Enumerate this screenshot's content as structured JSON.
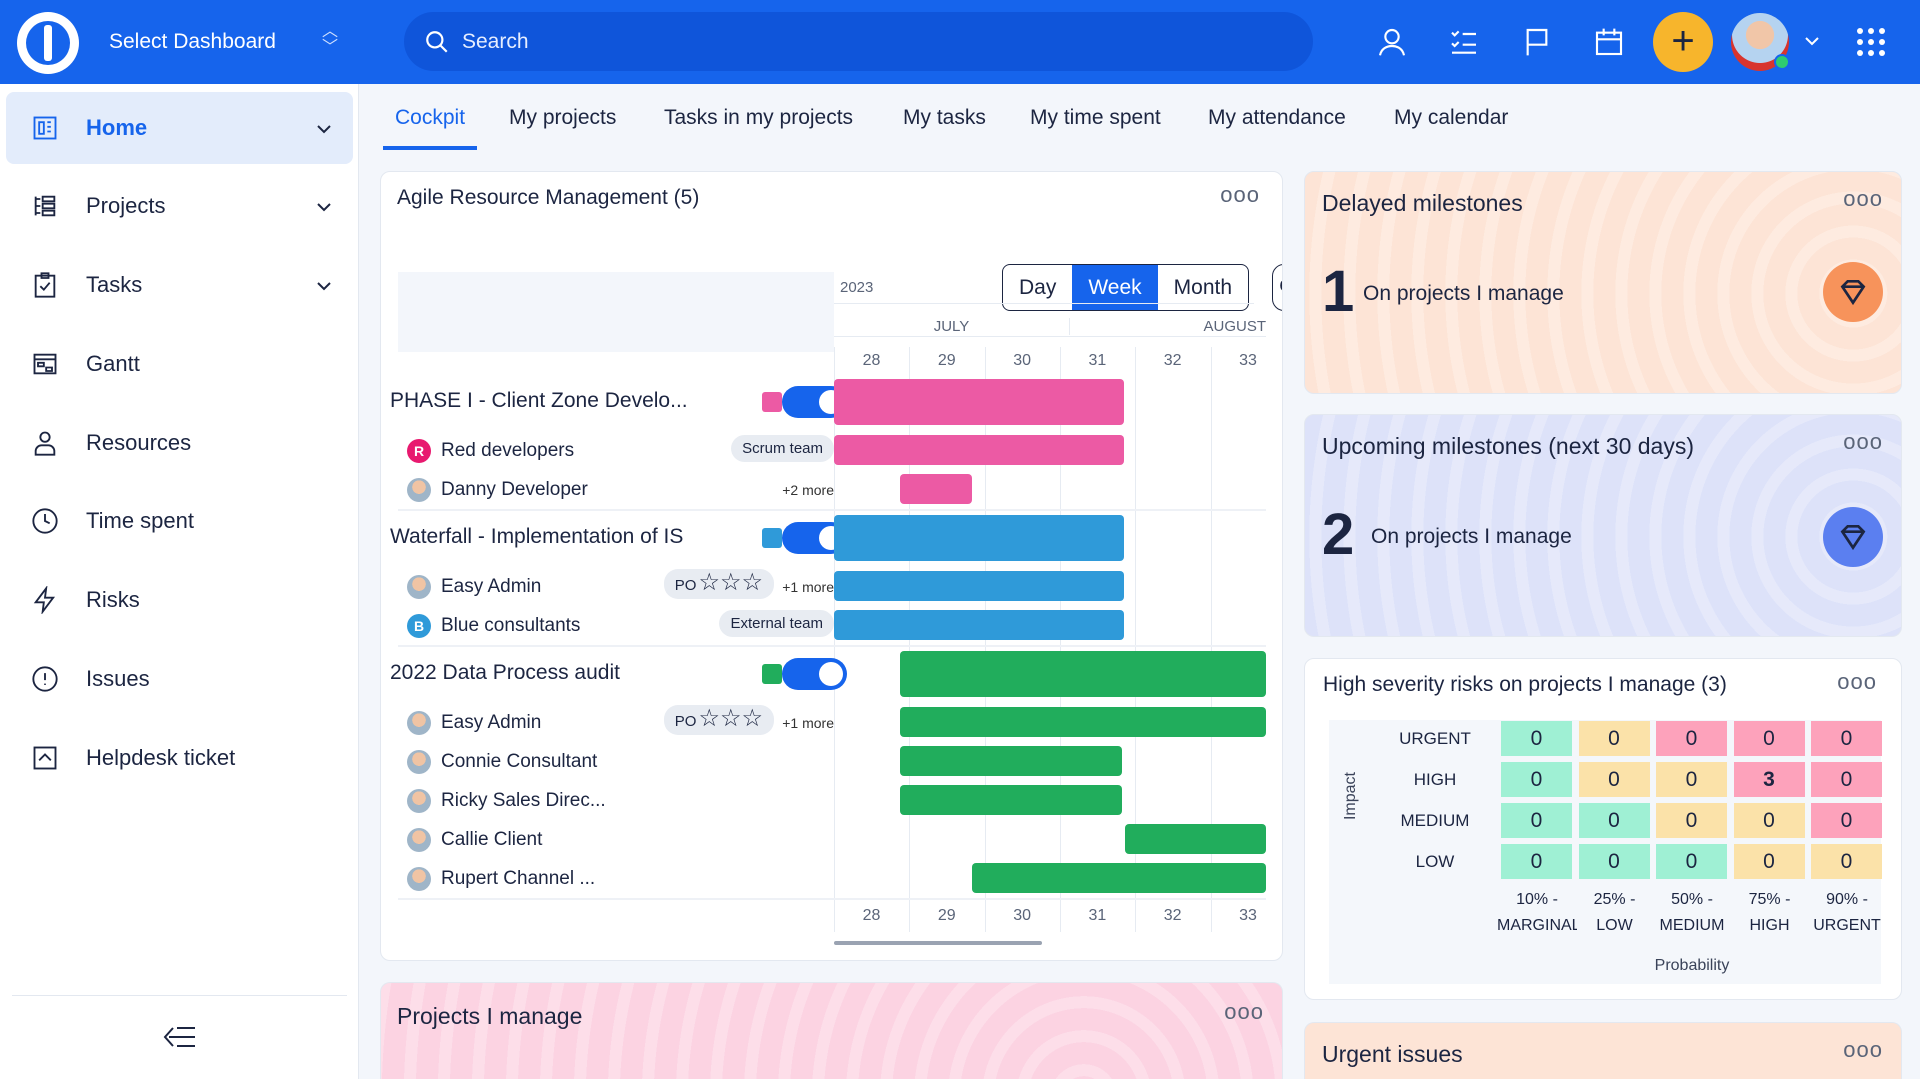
{
  "topbar": {
    "dashboard_label": "Select Dashboard",
    "search_placeholder": "Search"
  },
  "sidebar": {
    "items": [
      {
        "label": "Home",
        "icon": "dashboard-icon",
        "active": true,
        "chevron": true
      },
      {
        "label": "Projects",
        "icon": "projects-list-icon",
        "chevron": true
      },
      {
        "label": "Tasks",
        "icon": "clipboard-icon",
        "chevron": true
      },
      {
        "label": "Gantt",
        "icon": "gantt-icon"
      },
      {
        "label": "Resources",
        "icon": "person-icon"
      },
      {
        "label": "Time spent",
        "icon": "clock-icon"
      },
      {
        "label": "Risks",
        "icon": "lightning-icon"
      },
      {
        "label": "Issues",
        "icon": "alert-circle-icon"
      },
      {
        "label": "Helpdesk ticket",
        "icon": "ticket-icon"
      }
    ]
  },
  "tabs": [
    {
      "label": "Cockpit",
      "active": true
    },
    {
      "label": "My projects"
    },
    {
      "label": "Tasks in my projects"
    },
    {
      "label": "My tasks"
    },
    {
      "label": "My time spent"
    },
    {
      "label": "My attendance"
    },
    {
      "label": "My calendar"
    }
  ],
  "resource": {
    "title": "Agile Resource Management (5)",
    "views": [
      "Day",
      "Week",
      "Month"
    ],
    "active_view": "Week",
    "year": "2023",
    "months": [
      "JULY",
      "AUGUST"
    ],
    "weeks": [
      "28",
      "29",
      "30",
      "31",
      "32",
      "33"
    ],
    "groups": [
      {
        "name": "PHASE I - Client Zone Develo...",
        "color": "#ec5aa4",
        "enabled": true,
        "start": 28.0,
        "end": 31.85,
        "members": [
          {
            "name": "Red developers",
            "avatar": "R",
            "avatar_color": "#e8196f",
            "tag": "Scrum team",
            "start": 28.0,
            "end": 31.85
          },
          {
            "name": "Danny Developer",
            "photo": true,
            "more": "+2 more",
            "start": 28.87,
            "end": 29.83
          }
        ]
      },
      {
        "name": "Waterfall - Implementation of IS",
        "color": "#2f9ad9",
        "enabled": true,
        "start": 28.0,
        "end": 31.85,
        "members": [
          {
            "name": "Easy Admin",
            "photo": true,
            "tag": "PO",
            "stars": "☆☆☆",
            "more": "+1 more",
            "start": 28.0,
            "end": 31.85
          },
          {
            "name": "Blue consultants",
            "avatar": "B",
            "avatar_color": "#2f9ad9",
            "tag": "External team",
            "start": 28.0,
            "end": 31.85
          }
        ]
      },
      {
        "name": "2022 Data Process audit",
        "color": "#21ad5c",
        "enabled": true,
        "start": 28.87,
        "end": 33.8,
        "members": [
          {
            "name": "Easy Admin",
            "photo": true,
            "tag": "PO",
            "stars": "☆☆☆",
            "more": "+1 more",
            "start": 28.87,
            "end": 33.8
          },
          {
            "name": "Connie Consultant",
            "photo": true,
            "start": 28.87,
            "end": 31.83
          },
          {
            "name": "Ricky Sales Direc...",
            "photo": true,
            "start": 28.87,
            "end": 31.83
          },
          {
            "name": "Callie Client",
            "photo": true,
            "start": 31.87,
            "end": 33.8
          },
          {
            "name": "Rupert Channel ...",
            "photo": true,
            "start": 29.83,
            "end": 33.8
          }
        ]
      }
    ]
  },
  "delayed": {
    "title": "Delayed milestones",
    "count": "1",
    "label": "On projects I manage",
    "icon": "milestone-diamond-icon",
    "color": "#f7935b"
  },
  "upcoming": {
    "title": "Upcoming milestones (next 30 days)",
    "count": "2",
    "label": "On projects I manage",
    "icon": "milestone-diamond-icon",
    "color": "#5b7ff0"
  },
  "risks": {
    "title": "High severity risks on projects I manage (3)",
    "impact_label": "Impact",
    "probability_label": "Probability",
    "rows": [
      "URGENT",
      "HIGH",
      "MEDIUM",
      "LOW"
    ],
    "cols": [
      [
        "10% -",
        "MARGINAL"
      ],
      [
        "25% -",
        "LOW"
      ],
      [
        "50% -",
        "MEDIUM"
      ],
      [
        "75% -",
        "HIGH"
      ],
      [
        "90% -",
        "URGENT"
      ]
    ],
    "values": [
      [
        0,
        0,
        0,
        0,
        0
      ],
      [
        0,
        0,
        0,
        3,
        0
      ],
      [
        0,
        0,
        0,
        0,
        0
      ],
      [
        0,
        0,
        0,
        0,
        0
      ]
    ],
    "levels": [
      [
        "g",
        "y",
        "p",
        "p",
        "p"
      ],
      [
        "g",
        "y",
        "y",
        "p",
        "p"
      ],
      [
        "g",
        "g",
        "y",
        "y",
        "p"
      ],
      [
        "g",
        "g",
        "g",
        "y",
        "y"
      ]
    ],
    "colors": {
      "g": "#9ff0d4",
      "y": "#fbe2a9",
      "p": "#fda2bb"
    }
  },
  "projects": {
    "title": "Projects I manage"
  },
  "urgent": {
    "title": "Urgent issues"
  }
}
